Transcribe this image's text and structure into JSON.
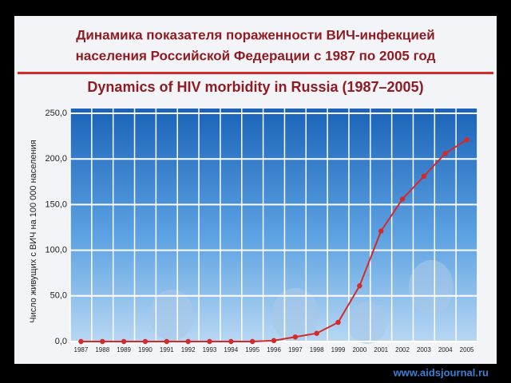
{
  "chart_data": {
    "type": "line",
    "title": [
      "Динамика показателя пораженности ВИЧ-инфекцией",
      "населения Российской Федерации с 1987 по 2005 год"
    ],
    "subtitle": "Dynamics of HIV morbidity in Russia (1987–2005)",
    "ylabel": "Число живущих с ВИЧ на 100 000 населения",
    "categories": [
      "1987",
      "1988",
      "1989",
      "1990",
      "1991",
      "1992",
      "1993",
      "1994",
      "1995",
      "1996",
      "1997",
      "1998",
      "1999",
      "2000",
      "2001",
      "2002",
      "2003",
      "2004",
      "2005"
    ],
    "values": [
      0,
      0,
      0,
      0,
      0,
      0,
      0,
      0,
      0,
      1,
      5,
      9,
      21,
      61,
      121,
      156,
      181,
      206,
      221
    ],
    "color": "#d42a2a",
    "ylim": [
      0,
      250
    ],
    "yticks": [
      {
        "value": 0,
        "label": "0,0"
      },
      {
        "value": 50,
        "label": "50,0"
      },
      {
        "value": 100,
        "label": "100,0"
      },
      {
        "value": 150,
        "label": "150,0"
      },
      {
        "value": 200,
        "label": "200,0"
      },
      {
        "value": 250,
        "label": "250,0"
      }
    ],
    "grid": true
  },
  "footer": "www.aidsjournal.ru"
}
